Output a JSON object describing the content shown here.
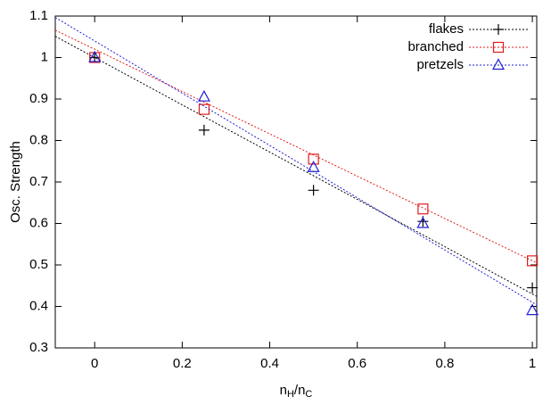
{
  "chart_data": {
    "type": "scatter",
    "ylabel": "Osc. Strength",
    "xlabel": [
      "n",
      "H",
      "/n",
      "C"
    ],
    "x": [
      0,
      0.25,
      0.5,
      0.75,
      1
    ],
    "series": [
      {
        "name": "flakes",
        "color": "#000000",
        "marker": "plus",
        "values": [
          1.0,
          0.825,
          0.68,
          0.605,
          0.445
        ],
        "fit": {
          "intercept": 1.0,
          "slope": -0.57
        }
      },
      {
        "name": "branched",
        "color": "#e41a1c",
        "marker": "square",
        "values": [
          1.0,
          0.875,
          0.755,
          0.635,
          0.51
        ],
        "fit": {
          "intercept": 1.02,
          "slope": -0.51
        }
      },
      {
        "name": "pretzels",
        "color": "#1f1fd6",
        "marker": "triangle",
        "values": [
          1.0,
          0.905,
          0.735,
          0.6,
          0.39
        ],
        "fit": {
          "intercept": 1.04,
          "slope": -0.63
        }
      }
    ],
    "xlim": [
      -0.09,
      1.01
    ],
    "xticks": [
      0,
      0.2,
      0.4,
      0.6,
      0.8,
      1
    ],
    "ylim": [
      0.3,
      1.1
    ],
    "yticks": [
      0.3,
      0.4,
      0.5,
      0.6,
      0.7,
      0.8,
      0.9,
      1,
      1.1
    ],
    "legend": "top-right",
    "grid": false
  }
}
